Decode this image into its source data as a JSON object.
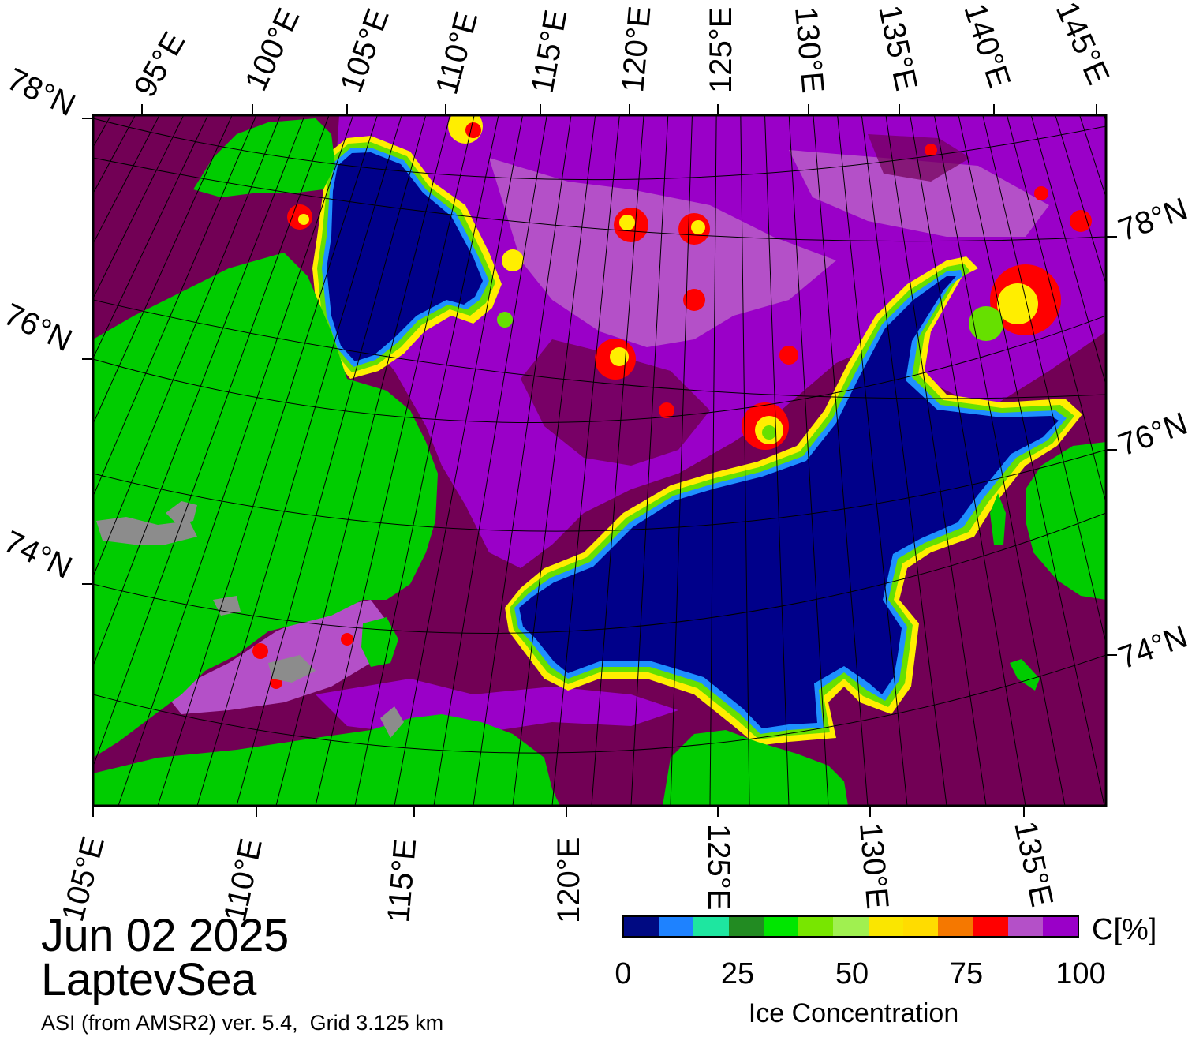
{
  "map": {
    "title_date": "Jun 02 2025",
    "region": "LaptevSea",
    "source_note": "ASI (from AMSR2) ver. 5.4,  Grid 3.125 km",
    "top_lon_labels": [
      "95°E",
      "100°E",
      "105°E",
      "110°E",
      "115°E",
      "120°E",
      "125°E",
      "130°E",
      "135°E",
      "140°E",
      "145°E"
    ],
    "bottom_lon_labels": [
      "105°E",
      "110°E",
      "115°E",
      "120°E",
      "125°E",
      "130°E",
      "135°E"
    ],
    "left_lat_labels": [
      "78°N",
      "76°N",
      "74°N"
    ],
    "right_lat_labels": [
      "78°N",
      "76°N",
      "74°N"
    ],
    "colors": {
      "land": "#00cc00",
      "land_gray": "#8c8c8c",
      "open_water": "#00008a",
      "ice_full": "#720055",
      "ice_high": "#9a00c8",
      "ice_mid": "#b450c8",
      "marginal_red": "#ff0000",
      "marginal_yellow": "#ffee00",
      "marginal_green": "#66e000",
      "marginal_cyan": "#20e0a0",
      "marginal_blue": "#1e90ff",
      "frame": "#000000"
    }
  },
  "colorbar": {
    "unit_label": "C[%]",
    "title": "Ice Concentration",
    "ticks": [
      "0",
      "25",
      "50",
      "75",
      "100"
    ],
    "segment_colors": [
      "#000a82",
      "#1e82ff",
      "#1ee6a0",
      "#228b22",
      "#00e600",
      "#78e600",
      "#a0f050",
      "#fae600",
      "#ffdc00",
      "#f57800",
      "#ff0000",
      "#b450c8",
      "#9a00c8"
    ]
  }
}
